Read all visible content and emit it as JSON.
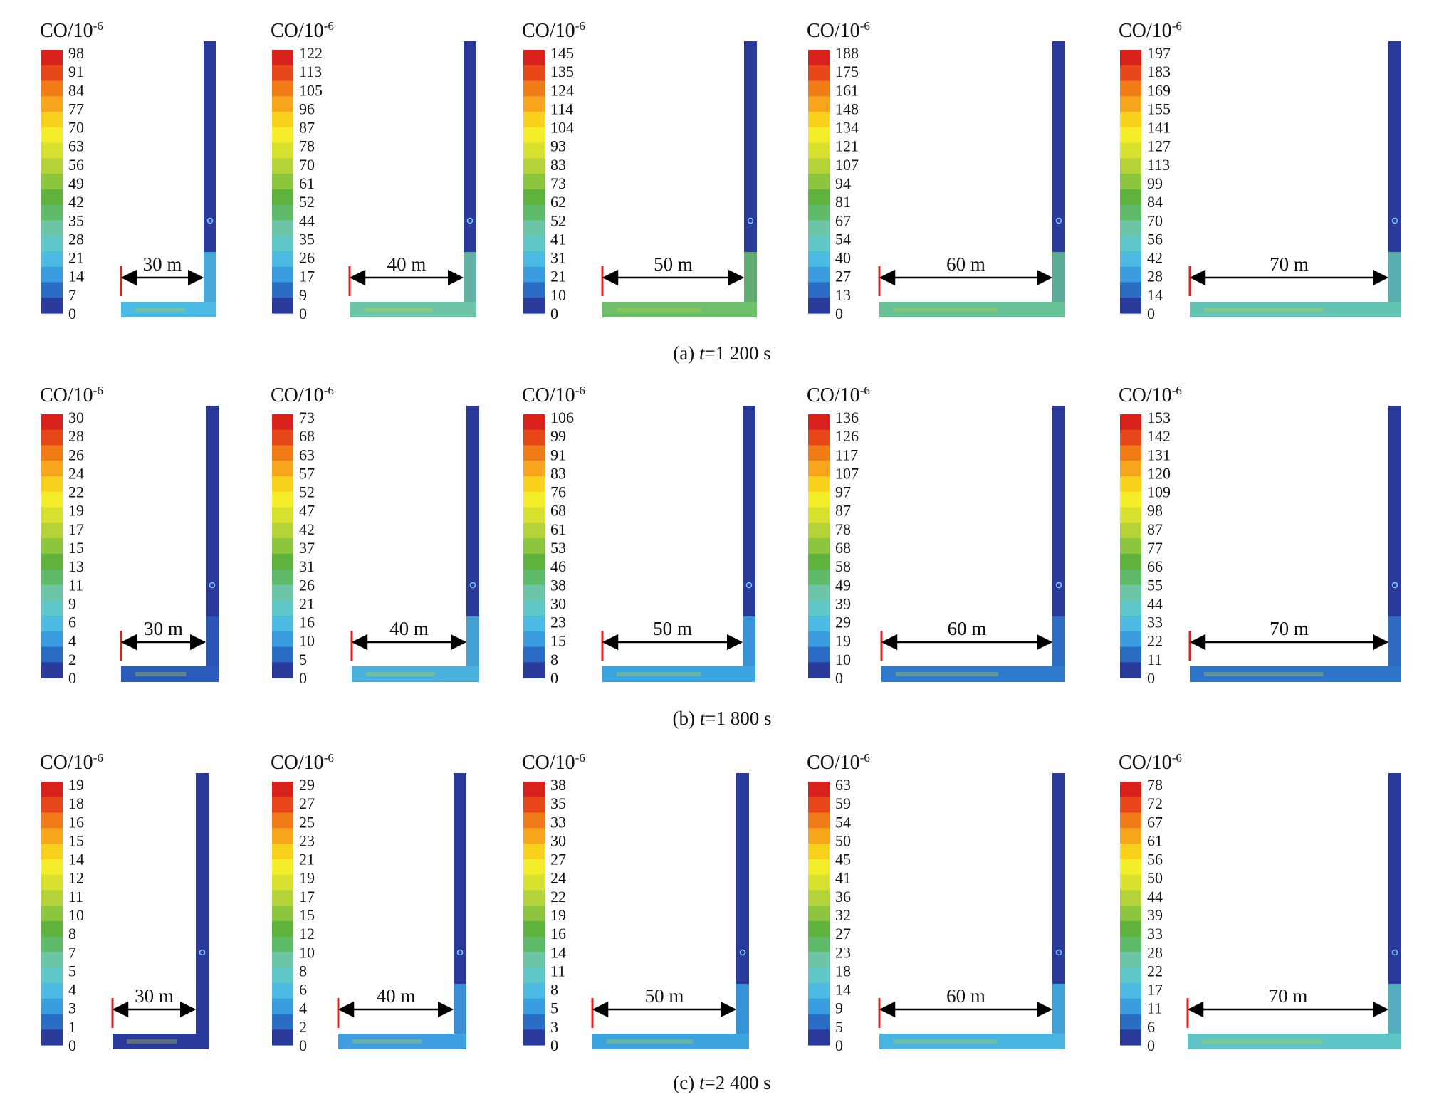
{
  "figure": {
    "unit_label": "CO/10",
    "unit_exp": "-6",
    "colorbar_colors": [
      "#2a3a9a",
      "#2b6cc4",
      "#3a9de0",
      "#4bbbe3",
      "#5fc7c9",
      "#6dc5a8",
      "#5fba6a",
      "#5fb33c",
      "#8cc63e",
      "#b6d43a",
      "#d8e22e",
      "#f4ee2a",
      "#f8d21c",
      "#f7a51a",
      "#f07c18",
      "#e8471a",
      "#d8211c"
    ],
    "rows": [
      {
        "caption": {
          "prefix": "(a) ",
          "var": "t",
          "rest": "=1 200 s"
        },
        "panels": [
          {
            "distance_label": "30 m",
            "ticks": [
              "98",
              "91",
              "84",
              "77",
              "70",
              "63",
              "56",
              "49",
              "42",
              "35",
              "28",
              "21",
              "14",
              "7",
              "0"
            ],
            "duct_color": "#4bbbe3"
          },
          {
            "distance_label": "40 m",
            "ticks": [
              "122",
              "113",
              "105",
              "96",
              "87",
              "78",
              "70",
              "61",
              "52",
              "44",
              "35",
              "26",
              "17",
              "9",
              "0"
            ],
            "duct_color": "#6dc5a8"
          },
          {
            "distance_label": "50 m",
            "ticks": [
              "145",
              "135",
              "124",
              "114",
              "104",
              "93",
              "83",
              "73",
              "62",
              "52",
              "41",
              "31",
              "21",
              "10",
              "0"
            ],
            "duct_color": "#6cc06a"
          },
          {
            "distance_label": "60 m",
            "ticks": [
              "188",
              "175",
              "161",
              "148",
              "134",
              "121",
              "107",
              "94",
              "81",
              "67",
              "54",
              "40",
              "27",
              "13",
              "0"
            ],
            "duct_color": "#67c197"
          },
          {
            "distance_label": "70 m",
            "ticks": [
              "197",
              "183",
              "169",
              "155",
              "141",
              "127",
              "113",
              "99",
              "84",
              "70",
              "56",
              "42",
              "28",
              "14",
              "0"
            ],
            "duct_color": "#64c4b4"
          }
        ]
      },
      {
        "caption": {
          "prefix": "(b) ",
          "var": "t",
          "rest": "=1 800 s"
        },
        "panels": [
          {
            "distance_label": "30 m",
            "ticks": [
              "30",
              "28",
              "26",
              "24",
              "22",
              "19",
              "17",
              "15",
              "13",
              "11",
              "9",
              "6",
              "4",
              "2",
              "0"
            ],
            "duct_color": "#2b5bb8"
          },
          {
            "distance_label": "40 m",
            "ticks": [
              "73",
              "68",
              "63",
              "57",
              "52",
              "47",
              "42",
              "37",
              "31",
              "26",
              "21",
              "16",
              "10",
              "5",
              "0"
            ],
            "duct_color": "#49b1dc"
          },
          {
            "distance_label": "50 m",
            "ticks": [
              "106",
              "99",
              "91",
              "83",
              "76",
              "68",
              "61",
              "53",
              "46",
              "38",
              "30",
              "23",
              "15",
              "8",
              "0"
            ],
            "duct_color": "#3aa3e0"
          },
          {
            "distance_label": "60 m",
            "ticks": [
              "136",
              "126",
              "117",
              "107",
              "97",
              "87",
              "78",
              "68",
              "58",
              "49",
              "39",
              "29",
              "19",
              "10",
              "0"
            ],
            "duct_color": "#2f79cc"
          },
          {
            "distance_label": "70 m",
            "ticks": [
              "153",
              "142",
              "131",
              "120",
              "109",
              "98",
              "87",
              "77",
              "66",
              "55",
              "44",
              "33",
              "22",
              "11",
              "0"
            ],
            "duct_color": "#2f74c8"
          }
        ]
      },
      {
        "caption": {
          "prefix": "(c) ",
          "var": "t",
          "rest": "=2 400 s"
        },
        "panels": [
          {
            "distance_label": "30 m",
            "ticks": [
              "19",
              "18",
              "16",
              "15",
              "14",
              "12",
              "11",
              "10",
              "8",
              "7",
              "5",
              "4",
              "3",
              "1",
              "0"
            ],
            "duct_color": "#2a3a9a"
          },
          {
            "distance_label": "40 m",
            "ticks": [
              "29",
              "27",
              "25",
              "23",
              "21",
              "19",
              "17",
              "15",
              "12",
              "10",
              "8",
              "6",
              "4",
              "2",
              "0"
            ],
            "duct_color": "#3e9ee0"
          },
          {
            "distance_label": "50 m",
            "ticks": [
              "38",
              "35",
              "33",
              "30",
              "27",
              "24",
              "22",
              "19",
              "16",
              "14",
              "11",
              "8",
              "5",
              "3",
              "0"
            ],
            "duct_color": "#3aa3e0"
          },
          {
            "distance_label": "60 m",
            "ticks": [
              "63",
              "59",
              "54",
              "50",
              "45",
              "41",
              "36",
              "32",
              "27",
              "23",
              "18",
              "14",
              "9",
              "5",
              "0"
            ],
            "duct_color": "#47b4e2"
          },
          {
            "distance_label": "70 m",
            "ticks": [
              "78",
              "72",
              "67",
              "61",
              "56",
              "50",
              "44",
              "39",
              "33",
              "28",
              "22",
              "17",
              "11",
              "6",
              "0"
            ],
            "duct_color": "#5ec4c8"
          }
        ]
      }
    ]
  }
}
